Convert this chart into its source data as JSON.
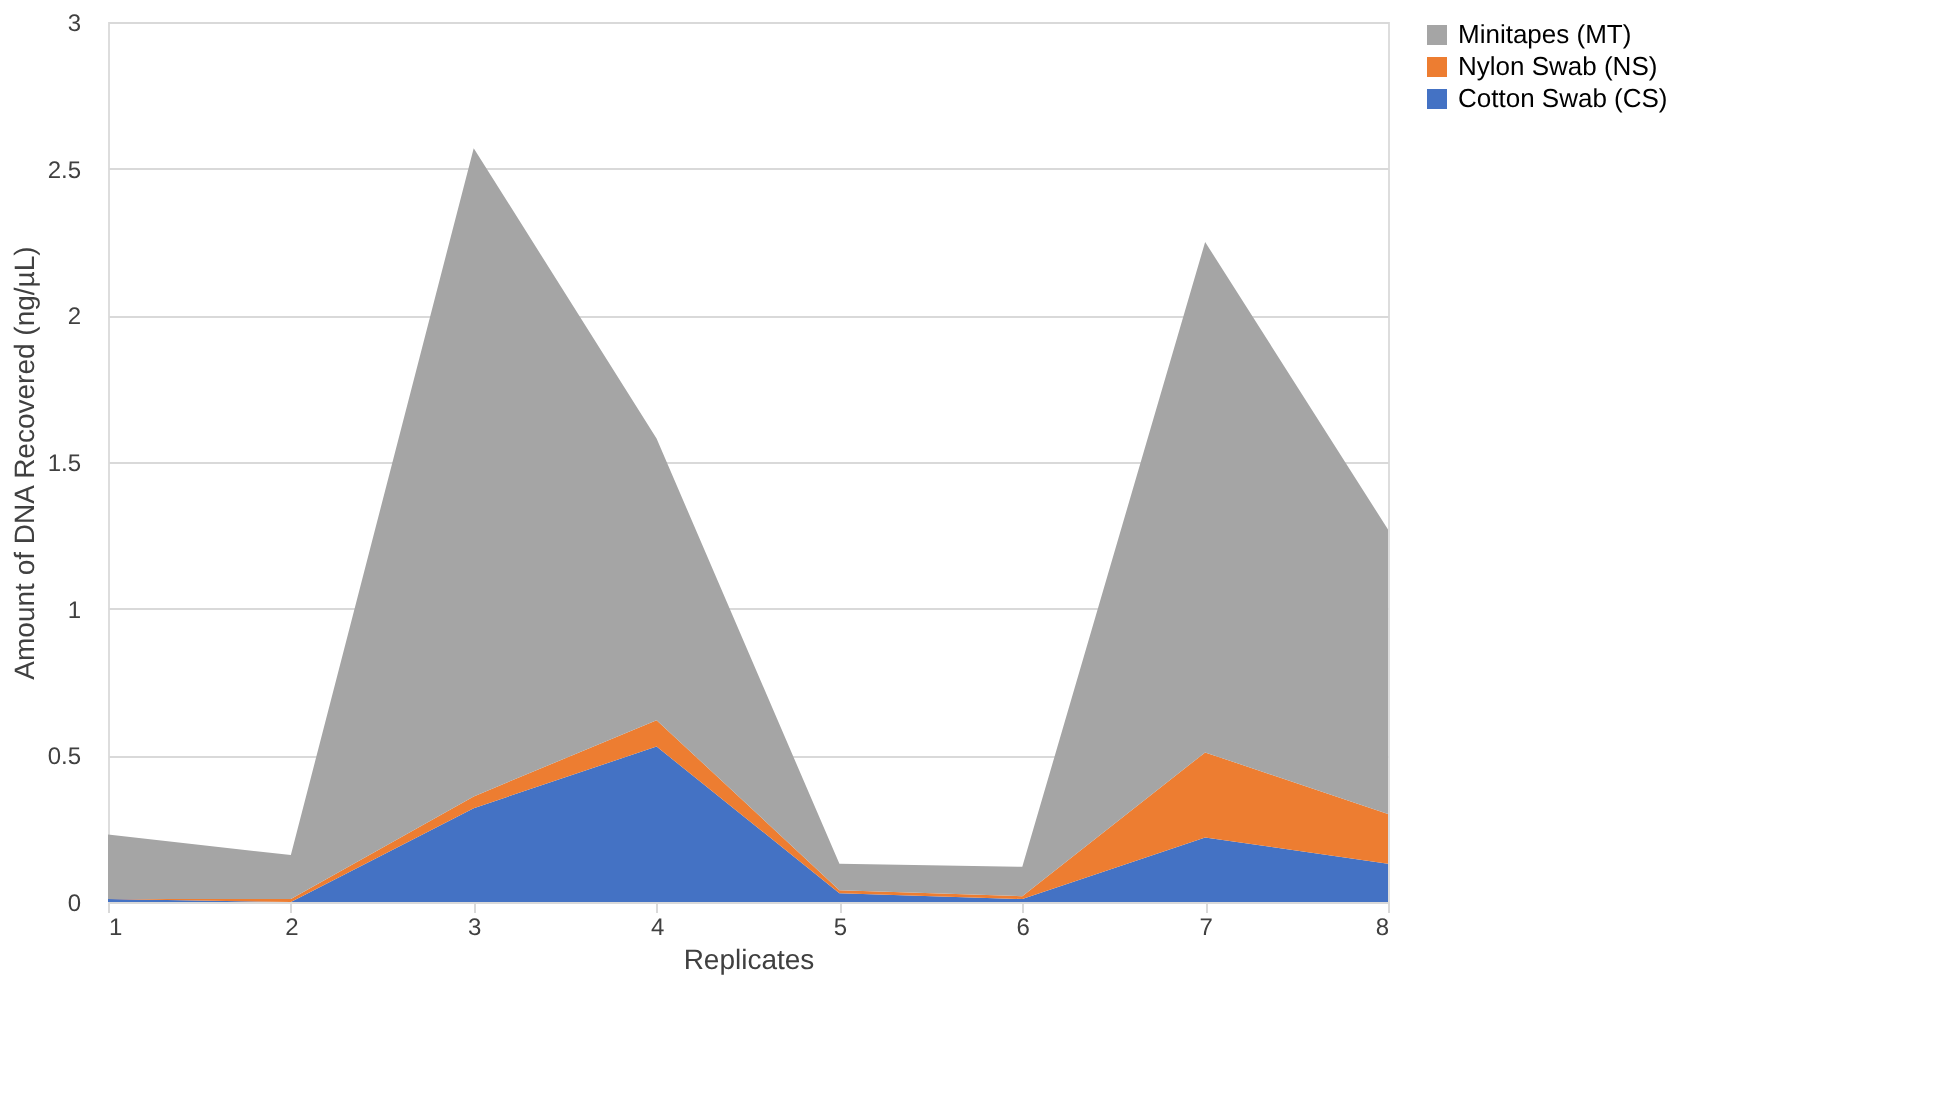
{
  "chart_data": {
    "type": "area",
    "stacked": true,
    "xlabel": "Replicates",
    "ylabel": "Amount of DNA Recovered (ng/µL)",
    "categories": [
      "1",
      "2",
      "3",
      "4",
      "5",
      "6",
      "7",
      "8"
    ],
    "series": [
      {
        "name": "Cotton Swab (CS)",
        "color": "#4472c4",
        "values": [
          0.01,
          0,
          0.32,
          0.53,
          0.03,
          0.01,
          0.22,
          0.13
        ]
      },
      {
        "name": "Nylon Swab (NS)",
        "color": "#ed7d31",
        "values": [
          0,
          0.01,
          0.04,
          0.09,
          0.01,
          0.01,
          0.29,
          0.17
        ]
      },
      {
        "name": "Minitapes (MT)",
        "color": "#a5a5a5",
        "values": [
          0.22,
          0.15,
          2.21,
          0.96,
          0.09,
          0.1,
          1.74,
          0.97
        ]
      }
    ],
    "ylim": [
      0,
      3
    ],
    "yticks": [
      0,
      0.5,
      1,
      1.5,
      2,
      2.5,
      3
    ],
    "grid": "y",
    "legend": "right"
  }
}
